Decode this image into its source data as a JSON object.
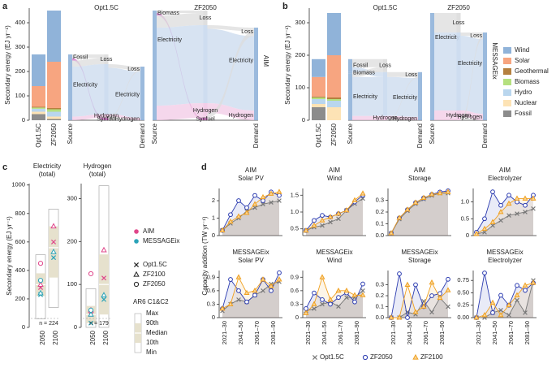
{
  "energy_carriers": [
    {
      "name": "Wind",
      "color": "#90b3d9"
    },
    {
      "name": "Solar",
      "color": "#f7a580"
    },
    {
      "name": "Geothermal",
      "color": "#b5803f"
    },
    {
      "name": "Biomass",
      "color": "#b5e07f"
    },
    {
      "name": "Hydro",
      "color": "#b9d6ee"
    },
    {
      "name": "Nuclear",
      "color": "#fde3b5"
    },
    {
      "name": "Fossil",
      "color": "#8c8c8c"
    }
  ],
  "c_legend": {
    "models": [
      {
        "name": "AIM",
        "color": "#e0468a"
      },
      {
        "name": "MESSAGEix",
        "color": "#2aa3b8"
      }
    ],
    "scenarios": [
      {
        "name": "Opt1.5C",
        "marker": "x"
      },
      {
        "name": "ZF2100",
        "marker": "triangle"
      },
      {
        "name": "ZF2050",
        "marker": "circle"
      }
    ],
    "ar6_title": "AR6 C1&C2",
    "ar6_labels": [
      "Max",
      "90th",
      "Median",
      "10th",
      "Min"
    ]
  },
  "d_legend": [
    {
      "name": "Opt1.5C",
      "color": "#777777",
      "marker": "x"
    },
    {
      "name": "ZF2050",
      "color": "#2b3bb0",
      "marker": "circle"
    },
    {
      "name": "ZF2100",
      "color": "#f0a020",
      "marker": "triangle"
    }
  ],
  "d_ylabel": "Capacity addition (TW yr⁻¹)",
  "d_panel_label": "d",
  "c_panel_label": "c",
  "chart_data": [
    {
      "type": "bar",
      "panel_label": "a",
      "ylabel": "Secondary energy (EJ yr⁻¹)",
      "categories": [
        "Opt1.5C",
        "ZF2050"
      ],
      "values": [
        [
          130,
          210
        ],
        [
          85,
          190
        ],
        [
          3,
          5
        ],
        [
          5,
          10
        ],
        [
          12,
          20
        ],
        [
          10,
          10
        ],
        [
          25,
          5
        ]
      ],
      "ylim": [
        0,
        460
      ],
      "yticks": [
        0,
        100,
        200,
        300,
        400
      ]
    },
    {
      "type": "sankey",
      "title": "Opt1.5C",
      "column_labels": [
        "Source",
        null,
        "Demand"
      ],
      "nodes": [
        {
          "label": "Fossil",
          "column": 0,
          "color": "#8c8c8c"
        },
        {
          "label": "Electricity",
          "column": 0,
          "color": "#c9d9ee"
        },
        {
          "label": "Loss",
          "column": 1,
          "color": "#dcdcdc"
        },
        {
          "label": null,
          "column": 1,
          "color": "#c9d9ee"
        },
        {
          "label": "Hydrogen",
          "column": 1,
          "color": "#f2c9e6"
        },
        {
          "label": "Synfuel",
          "column": 1,
          "color": "#d675c9"
        },
        {
          "label": "Loss",
          "column": 2,
          "color": "#dcdcdc"
        },
        {
          "label": "Electricity",
          "column": 2,
          "color": "#c9d9ee"
        },
        {
          "label": "Hydrogen",
          "column": 2,
          "color": "#f2c9e6"
        }
      ],
      "links": [
        {
          "from": 0,
          "to": 2,
          "value": 15
        },
        {
          "from": 0,
          "to": 5,
          "value": 10
        },
        {
          "from": 1,
          "to": 2,
          "value": 25
        },
        {
          "from": 1,
          "to": 3,
          "value": 205
        },
        {
          "from": 1,
          "to": 4,
          "value": 15
        },
        {
          "from": 3,
          "to": 6,
          "value": 15
        },
        {
          "from": 3,
          "to": 7,
          "value": 190
        },
        {
          "from": 4,
          "to": 8,
          "value": 10
        },
        {
          "from": 4,
          "to": 6,
          "value": 5
        }
      ]
    },
    {
      "type": "sankey",
      "title": "ZF2050",
      "model": "AIM",
      "column_labels": [
        "Source",
        null,
        "Demand"
      ],
      "nodes": [
        {
          "label": "Biomass",
          "column": 0,
          "color": "#b5e07f"
        },
        {
          "label": "Electricity",
          "column": 0,
          "color": "#c9d9ee"
        },
        {
          "label": "Loss",
          "column": 1,
          "color": "#dcdcdc"
        },
        {
          "label": null,
          "column": 1,
          "color": "#c9d9ee"
        },
        {
          "label": "Hydrogen",
          "column": 1,
          "color": "#f2c9e6"
        },
        {
          "label": "Synfuel",
          "column": 1,
          "color": "#d675c9"
        },
        {
          "label": "Loss",
          "column": 2,
          "color": "#dcdcdc"
        },
        {
          "label": "Electricity",
          "column": 2,
          "color": "#c9d9ee"
        },
        {
          "label": "Hydrogen",
          "column": 2,
          "color": "#f2c9e6"
        }
      ],
      "links": [
        {
          "from": 0,
          "to": 2,
          "value": 10
        },
        {
          "from": 0,
          "to": 5,
          "value": 10
        },
        {
          "from": 1,
          "to": 2,
          "value": 50
        },
        {
          "from": 1,
          "to": 3,
          "value": 320
        },
        {
          "from": 1,
          "to": 4,
          "value": 60
        },
        {
          "from": 3,
          "to": 6,
          "value": 15
        },
        {
          "from": 3,
          "to": 7,
          "value": 305
        },
        {
          "from": 4,
          "to": 8,
          "value": 40
        },
        {
          "from": 4,
          "to": 6,
          "value": 20
        }
      ]
    },
    {
      "type": "bar",
      "panel_label": "b",
      "ylabel": "Secondary energy (EJ yr⁻¹)",
      "categories": [
        "Opt1.5C",
        "ZF2050"
      ],
      "values": [
        [
          55,
          130
        ],
        [
          60,
          130
        ],
        [
          3,
          5
        ],
        [
          5,
          5
        ],
        [
          15,
          20
        ],
        [
          10,
          40
        ],
        [
          40,
          0
        ]
      ],
      "ylim": [
        0,
        345
      ],
      "yticks": [
        0,
        100,
        200,
        300
      ]
    },
    {
      "type": "sankey",
      "title": "Opt1.5C",
      "column_labels": [
        "Source",
        null,
        "Demand"
      ],
      "nodes": [
        {
          "label": "Fossil",
          "column": 0,
          "color": "#8c8c8c"
        },
        {
          "label": "Biomass",
          "column": 0,
          "color": "#b5e07f"
        },
        {
          "label": "Electricity",
          "column": 0,
          "color": "#c9d9ee"
        },
        {
          "label": "Loss",
          "column": 1,
          "color": "#dcdcdc"
        },
        {
          "label": null,
          "column": 1,
          "color": "#c9d9ee"
        },
        {
          "label": "Hydrogen",
          "column": 1,
          "color": "#f2c9e6"
        },
        {
          "label": "Loss",
          "column": 2,
          "color": "#dcdcdc"
        },
        {
          "label": "Electricity",
          "column": 2,
          "color": "#c9d9ee"
        },
        {
          "label": "Hydrogen",
          "column": 2,
          "color": "#f2c9e6"
        }
      ],
      "links": [
        {
          "from": 0,
          "to": 3,
          "value": 25
        },
        {
          "from": 0,
          "to": 4,
          "value": 15
        },
        {
          "from": 1,
          "to": 3,
          "value": 5
        },
        {
          "from": 2,
          "to": 3,
          "value": 10
        },
        {
          "from": 2,
          "to": 4,
          "value": 120
        },
        {
          "from": 2,
          "to": 5,
          "value": 13
        },
        {
          "from": 4,
          "to": 6,
          "value": 15
        },
        {
          "from": 4,
          "to": 7,
          "value": 120
        },
        {
          "from": 5,
          "to": 8,
          "value": 10
        },
        {
          "from": 5,
          "to": 6,
          "value": 3
        }
      ]
    },
    {
      "type": "sankey",
      "title": "ZF2050",
      "model": "MESSAGEix",
      "column_labels": [
        "Source",
        null,
        "Demand"
      ],
      "nodes": [
        {
          "label": "Electricity",
          "column": 0,
          "color": "#c9d9ee"
        },
        {
          "label": "Loss",
          "column": 1,
          "color": "#dcdcdc"
        },
        {
          "label": null,
          "column": 1,
          "color": "#c9d9ee"
        },
        {
          "label": "Hydrogen",
          "column": 1,
          "color": "#f2c9e6"
        },
        {
          "label": "Loss",
          "column": 2,
          "color": "#dcdcdc"
        },
        {
          "label": "Electricity",
          "column": 2,
          "color": "#c9d9ee"
        },
        {
          "label": "Hydrogen",
          "column": 2,
          "color": "#f2c9e6"
        }
      ],
      "links": [
        {
          "from": 0,
          "to": 1,
          "value": 60
        },
        {
          "from": 0,
          "to": 2,
          "value": 240
        },
        {
          "from": 0,
          "to": 3,
          "value": 30
        },
        {
          "from": 2,
          "to": 4,
          "value": 10
        },
        {
          "from": 2,
          "to": 5,
          "value": 230
        },
        {
          "from": 3,
          "to": 6,
          "value": 20
        },
        {
          "from": 3,
          "to": 4,
          "value": 10
        }
      ]
    },
    {
      "type": "range",
      "title": "Electricity",
      "subtitle": "(total)",
      "ylabel": "Secondary energy (EJ yr⁻¹)",
      "categories": [
        "2050",
        "2100"
      ],
      "n_label": "n = 224",
      "ranges": [
        {
          "min": 60,
          "p10": 220,
          "median": 300,
          "p90": 380,
          "max": 510
        },
        {
          "min": 140,
          "p10": 350,
          "median": 560,
          "p90": 710,
          "max": 830
        }
      ],
      "points": [
        [
          [
            280,
            600
          ],
          [
            300,
            710
          ],
          [
            450,
            null
          ]
        ],
        [
          [
            230,
            490
          ],
          [
            240,
            530
          ],
          [
            330,
            null
          ]
        ]
      ],
      "ylim": [
        0,
        1010
      ],
      "yticks": [
        0,
        200,
        400,
        600,
        800,
        1000
      ]
    },
    {
      "type": "range",
      "title": "Hydrogen",
      "subtitle": "(total)",
      "categories": [
        "2050",
        "2100"
      ],
      "n_label": "n = 179",
      "ranges": [
        {
          "min": 0,
          "p10": 10,
          "median": 30,
          "p90": 50,
          "max": 90
        },
        {
          "min": 0,
          "p10": 30,
          "median": 100,
          "p90": 170,
          "max": 330
        }
      ],
      "points": [
        [
          [
            30,
            115
          ],
          [
            40,
            180
          ],
          [
            125,
            null
          ]
        ],
        [
          [
            10,
            65
          ],
          [
            30,
            75
          ],
          [
            40,
            null
          ]
        ]
      ],
      "ylim": [
        0,
        335
      ],
      "yticks": [
        0,
        100,
        200,
        300
      ]
    },
    {
      "type": "line",
      "model": "AIM",
      "title": "Solar PV",
      "ylim": [
        0,
        2.7
      ],
      "yticks": [
        0,
        1,
        2
      ],
      "values": [
        [
          0.3,
          0.7,
          1.0,
          1.4,
          1.6,
          1.8,
          1.9,
          2.0
        ],
        [
          0.3,
          1.2,
          2.0,
          1.6,
          2.3,
          2.0,
          2.5,
          2.3
        ],
        [
          0.3,
          0.8,
          1.1,
          1.3,
          1.8,
          2.2,
          2.4,
          2.5
        ]
      ]
    },
    {
      "type": "line",
      "model": "AIM",
      "title": "Wind",
      "ylim": [
        0.3,
        1.7
      ],
      "yticks": [
        0.5,
        {
          "value": 1,
          "label": "1.0"
        },
        1.5
      ],
      "values": [
        [
          0.45,
          0.55,
          0.6,
          0.7,
          0.8,
          1.05,
          1.25,
          1.4
        ],
        [
          0.45,
          0.75,
          0.9,
          0.85,
          0.95,
          1.05,
          1.3,
          1.5
        ],
        [
          0.45,
          0.6,
          0.75,
          0.85,
          0.95,
          1.05,
          1.35,
          1.55
        ]
      ]
    },
    {
      "type": "line",
      "model": "AIM",
      "title": "Storage",
      "ylim": [
        0,
        0.4
      ],
      "yticks": [
        {
          "value": 0,
          "label": "0.0"
        },
        0.1,
        0.2,
        0.3
      ],
      "values": [
        [
          0.02,
          0.14,
          0.21,
          0.27,
          0.31,
          0.34,
          0.36,
          0.36
        ],
        [
          0.02,
          0.15,
          0.22,
          0.28,
          0.32,
          0.35,
          0.37,
          0.38
        ],
        [
          0.02,
          0.15,
          0.22,
          0.28,
          0.32,
          0.35,
          0.36,
          0.37
        ]
      ]
    },
    {
      "type": "line",
      "model": "AIM",
      "title": "Electrolyzer",
      "ylim": [
        0,
        1.4
      ],
      "yticks": [
        0,
        0.5,
        {
          "value": 1,
          "label": "1.0"
        }
      ],
      "values": [
        [
          0.05,
          0.1,
          0.3,
          0.45,
          0.6,
          0.65,
          0.7,
          0.8
        ],
        [
          0.1,
          0.5,
          1.3,
          0.9,
          1.2,
          1.0,
          0.9,
          1.2
        ],
        [
          0.05,
          0.2,
          0.4,
          0.7,
          0.95,
          1.1,
          1.1,
          1.1
        ]
      ]
    },
    {
      "type": "line",
      "model": "MESSAGEix",
      "title": "Solar PV",
      "ylim": [
        0,
        1.05
      ],
      "yticks": [
        0,
        0.3,
        0.6,
        0.9
      ],
      "categories": [
        "2021–30",
        null,
        "2041–50",
        null,
        "2061–70",
        null,
        "2081–90",
        null
      ],
      "values": [
        [
          0.15,
          0.3,
          0.4,
          0.35,
          0.5,
          0.6,
          0.75,
          0.8
        ],
        [
          0.2,
          0.85,
          0.6,
          0.35,
          0.5,
          0.85,
          0.6,
          1.0
        ],
        [
          0.2,
          0.3,
          0.9,
          0.55,
          0.6,
          0.85,
          0.7,
          0.85
        ]
      ]
    },
    {
      "type": "line",
      "model": "MESSAGEix",
      "title": "Wind",
      "ylim": [
        0,
        1.05
      ],
      "yticks": [
        0,
        0.3,
        0.6,
        0.9
      ],
      "categories": [
        "2021–30",
        null,
        "2041–50",
        null,
        "2061–70",
        null,
        "2081–90",
        null
      ],
      "values": [
        [
          0.15,
          0.2,
          0.3,
          0.35,
          0.25,
          0.45,
          0.45,
          0.6
        ],
        [
          0.2,
          0.55,
          0.4,
          0.3,
          0.45,
          0.55,
          0.35,
          0.75
        ],
        [
          0.1,
          0.3,
          0.9,
          0.4,
          0.6,
          0.6,
          0.5,
          0.5
        ]
      ]
    },
    {
      "type": "line",
      "model": "MESSAGEix",
      "title": "Storage",
      "ylim": [
        0,
        0.43
      ],
      "yticks": [
        {
          "value": 0,
          "label": "0.0"
        },
        0.1,
        0.2,
        0.3
      ],
      "categories": [
        "2021–30",
        null,
        "2041–50",
        null,
        "2061–70",
        null,
        "2081–90",
        null
      ],
      "values": [
        [
          0,
          0,
          0.05,
          0.03,
          0.15,
          0.05,
          0.18,
          0.1
        ],
        [
          0,
          0.4,
          0,
          0.3,
          0.1,
          0.2,
          0.22,
          0.35
        ],
        [
          0,
          0,
          0.3,
          0.05,
          0.1,
          0.32,
          0.18,
          0.25
        ]
      ]
    },
    {
      "type": "line",
      "model": "MESSAGEix",
      "title": "Electrolyzer",
      "ylim": [
        0,
        0.95
      ],
      "yticks": [
        {
          "value": 0,
          "label": "0.00"
        },
        0.25,
        {
          "value": 0.5,
          "label": "0.50"
        },
        0.75
      ],
      "categories": [
        "2021–30",
        null,
        "2041–50",
        null,
        "2061–70",
        null,
        "2081–90",
        null
      ],
      "values": [
        [
          0,
          0,
          0.1,
          0.15,
          0.05,
          0.35,
          0.1,
          0.75
        ],
        [
          0,
          0.9,
          0.1,
          0.45,
          0.25,
          0.65,
          0.55,
          0.7
        ],
        [
          0,
          0.05,
          0.3,
          0.05,
          0.25,
          0.45,
          0.65,
          0.7
        ]
      ]
    }
  ]
}
